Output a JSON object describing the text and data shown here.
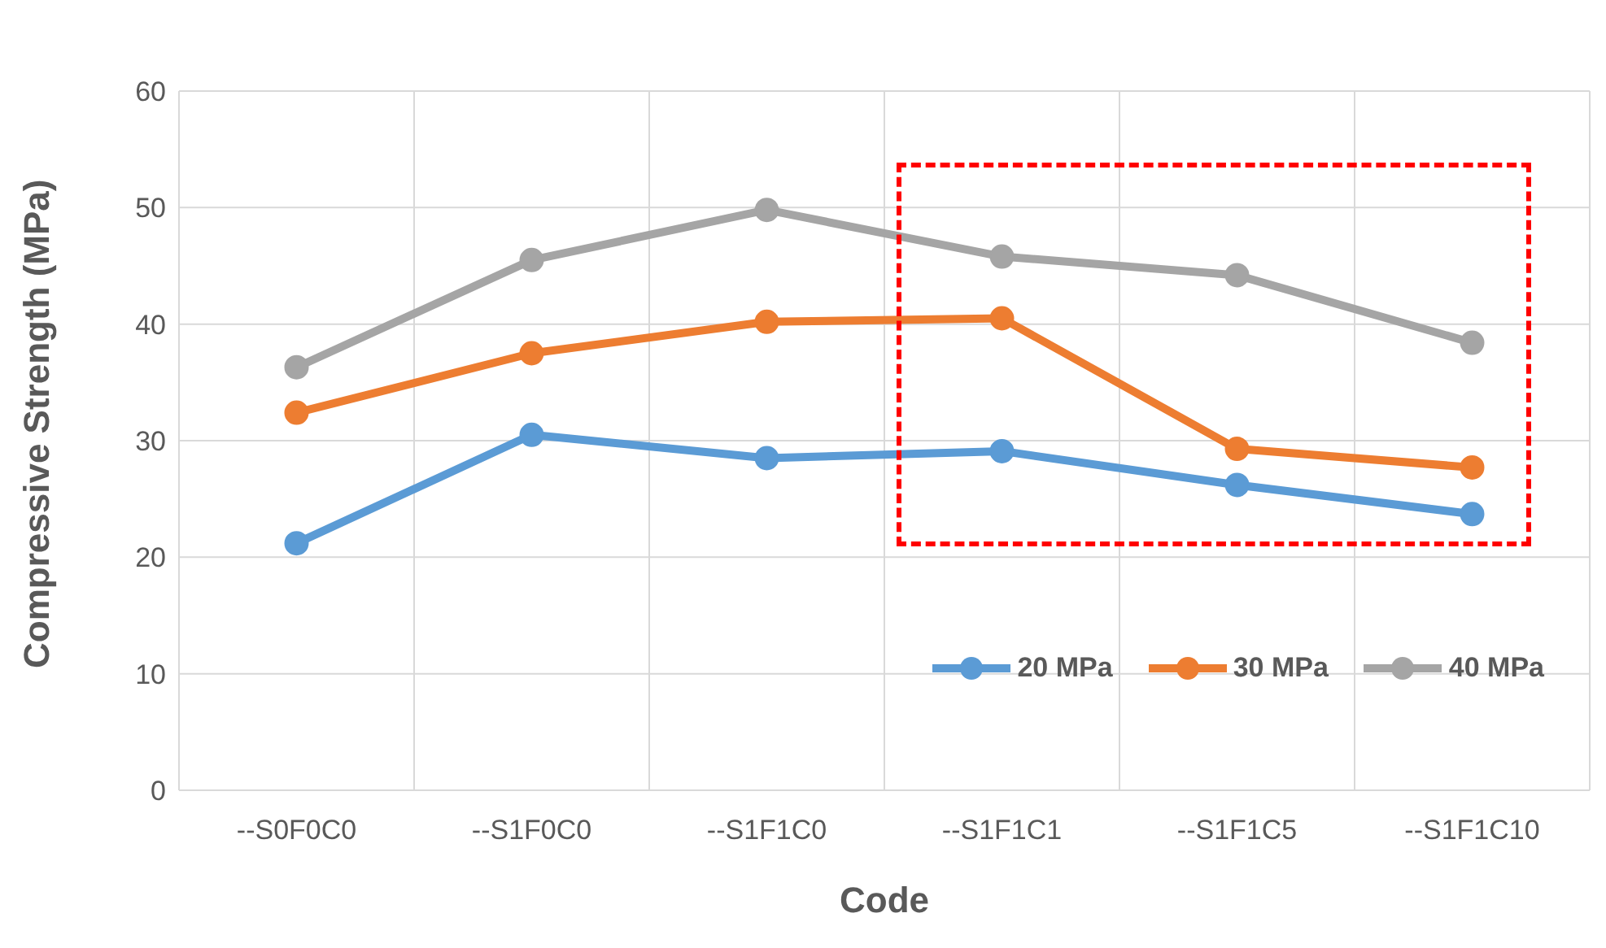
{
  "chart_data": {
    "type": "line",
    "xlabel": "Code",
    "ylabel": "Compressive Strength (MPa)",
    "categories": [
      "--S0F0C0",
      "--S1F0C0",
      "--S1F1C0",
      "--S1F1C1",
      "--S1F1C5",
      "--S1F1C10"
    ],
    "series": [
      {
        "name": "20 MPa",
        "color": "#5b9bd5",
        "values": [
          21.2,
          30.5,
          28.5,
          29.1,
          26.2,
          23.7
        ]
      },
      {
        "name": "30 MPa",
        "color": "#ed7d31",
        "values": [
          32.4,
          37.5,
          40.2,
          40.5,
          29.3,
          27.7
        ]
      },
      {
        "name": "40 MPa",
        "color": "#a5a5a5",
        "values": [
          36.3,
          45.5,
          49.8,
          45.8,
          44.2,
          38.4
        ]
      }
    ],
    "ylim": [
      0,
      60
    ],
    "yticks": [
      0,
      10,
      20,
      30,
      40,
      50,
      60
    ],
    "grid": true,
    "legend": "bottom right",
    "marker": "circle",
    "line_style": "solid"
  }
}
